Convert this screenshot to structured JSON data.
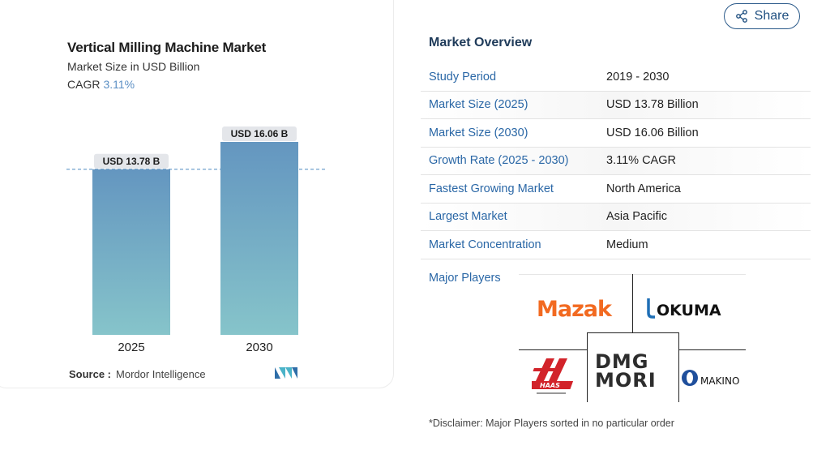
{
  "chart_data": {
    "type": "bar",
    "title": "Vertical Milling Machine Market",
    "subtitle": "Market Size in USD Billion",
    "cagr_label": "CAGR",
    "cagr_value": "3.11%",
    "categories": [
      "2025",
      "2030"
    ],
    "values": [
      13.78,
      16.06
    ],
    "data_labels": [
      "USD 13.78 B",
      "USD 16.06 B"
    ],
    "colors": {
      "bar_top": "#6496c0",
      "bar_bottom": "#86c4ca",
      "label_bg": "#e4e6ea",
      "guide": "#4f8ac0"
    },
    "grid": false
  },
  "source": {
    "label": "Source :",
    "value": "Mordor Intelligence"
  },
  "share": {
    "label": "Share"
  },
  "overview": {
    "title": "Market Overview",
    "rows": [
      {
        "key": "Study Period",
        "value": "2019 - 2030"
      },
      {
        "key": "Market Size (2025)",
        "value": "USD 13.78 Billion"
      },
      {
        "key": "Market Size (2030)",
        "value": "USD 16.06 Billion"
      },
      {
        "key": "Growth Rate (2025 - 2030)",
        "value": "3.11% CAGR"
      },
      {
        "key": "Fastest Growing Market",
        "value": "North America"
      },
      {
        "key": "Largest Market",
        "value": "Asia Pacific"
      },
      {
        "key": "Market Concentration",
        "value": "Medium"
      }
    ]
  },
  "major_players": {
    "label": "Major Players",
    "logos": [
      "Mazak",
      "OKUMA",
      "HAAS",
      "DMG MORI",
      "MAKINO"
    ]
  },
  "disclaimer": "*Disclaimer: Major Players sorted in no particular order"
}
